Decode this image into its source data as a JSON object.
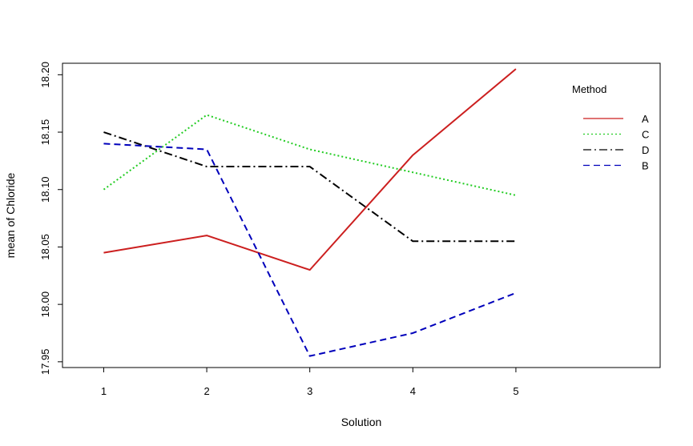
{
  "chart_data": {
    "type": "line",
    "title": "",
    "xlabel": "Solution",
    "ylabel": "mean of  Chloride",
    "x": [
      1,
      2,
      3,
      4,
      5
    ],
    "x_tick_labels": [
      "1",
      "2",
      "3",
      "4",
      "5"
    ],
    "xlim": [
      0.6,
      6.4
    ],
    "ylim": [
      17.945,
      18.21
    ],
    "y_ticks": [
      "17.95",
      "18.00",
      "18.05",
      "18.10",
      "18.15",
      "18.20"
    ],
    "grid": false,
    "legend": {
      "title": "Method",
      "position": "top-right",
      "entries": [
        "A",
        "C",
        "D",
        "B"
      ]
    },
    "series": [
      {
        "name": "A",
        "values": [
          18.045,
          18.06,
          18.03,
          18.13,
          18.205
        ],
        "color": "#cc1f1f",
        "line_style": "solid"
      },
      {
        "name": "C",
        "values": [
          18.1,
          18.165,
          18.135,
          18.115,
          18.095
        ],
        "color": "#22cc22",
        "line_style": "dotted"
      },
      {
        "name": "D",
        "values": [
          18.15,
          18.12,
          18.12,
          18.055,
          18.055
        ],
        "color": "#000000",
        "line_style": "dashdot"
      },
      {
        "name": "B",
        "values": [
          18.14,
          18.135,
          17.955,
          17.975,
          18.01
        ],
        "color": "#0000bb",
        "line_style": "dashed"
      }
    ]
  }
}
